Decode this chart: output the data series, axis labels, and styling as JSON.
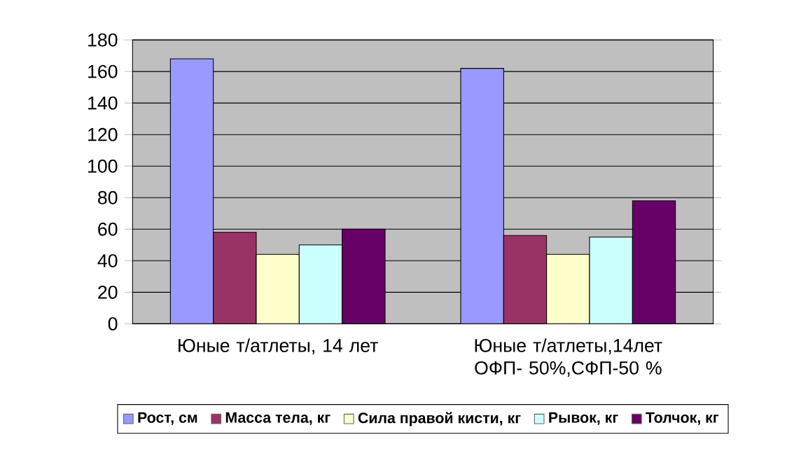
{
  "chart_data": {
    "type": "bar",
    "categories": [
      "Юные т/атлеты, 14 лет",
      "Юные т/атлеты,14лет ОФП- 50%,СФП-50 %"
    ],
    "series": [
      {
        "name": "Рост, см",
        "color": "#9999ff",
        "values": [
          168,
          162
        ]
      },
      {
        "name": "Масса тела, кг",
        "color": "#993366",
        "values": [
          58,
          56
        ]
      },
      {
        "name": "Сила правой кисти, кг",
        "color": "#ffffcc",
        "values": [
          44,
          44
        ]
      },
      {
        "name": "Рывок, кг",
        "color": "#ccffff",
        "values": [
          50,
          55
        ]
      },
      {
        "name": "Толчок, кг",
        "color": "#660066",
        "values": [
          60,
          78
        ]
      }
    ],
    "ylim": [
      0,
      180
    ],
    "yticks": [
      0,
      20,
      40,
      60,
      80,
      100,
      120,
      140,
      160,
      180
    ],
    "grid": "y",
    "legend": "bottom"
  }
}
